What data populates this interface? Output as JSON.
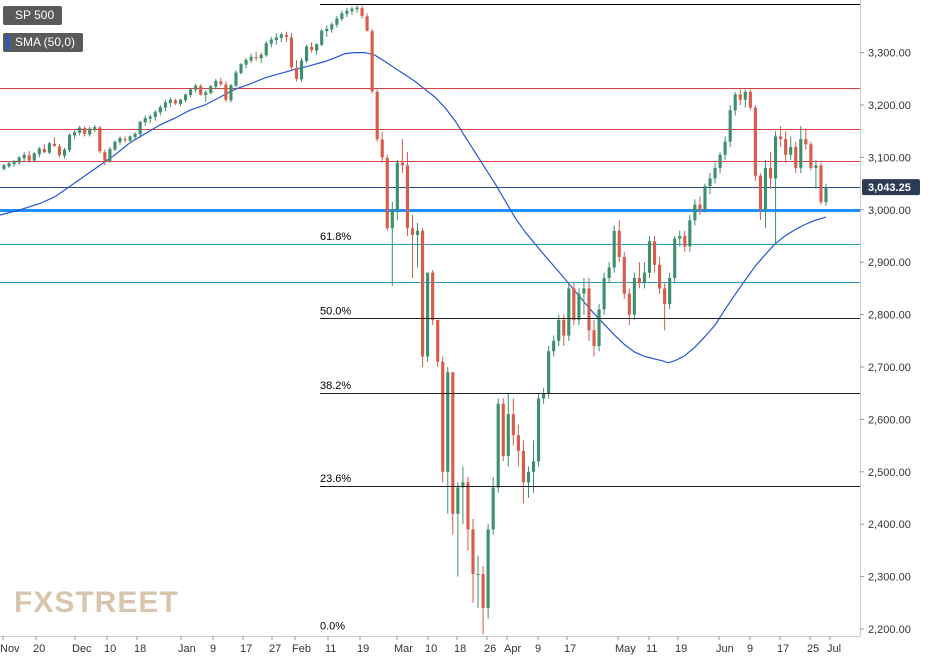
{
  "chart_data": {
    "type": "candlestick",
    "title": "SP 500",
    "series": [
      {
        "name": "SP 500",
        "kind": "candles"
      },
      {
        "name": "SMA (50,0)",
        "kind": "line",
        "color": "#2457d6"
      }
    ],
    "ylim": [
      2180,
      3400
    ],
    "y_ticks": [
      2200,
      2300,
      2400,
      2500,
      2600,
      2700,
      2800,
      2900,
      3000,
      3100,
      3200,
      3300
    ],
    "y_tick_labels": [
      "2,200.00",
      "2,300.00",
      "2,400.00",
      "2,500.00",
      "2,600.00",
      "2,700.00",
      "2,800.00",
      "2,900.00",
      "3,000.00",
      "3,100.00",
      "3,200.00",
      "3,300.00"
    ],
    "x_tick_labels": [
      "Nov",
      "20",
      "Dec",
      "10",
      "18",
      "Jan",
      "9",
      "17",
      "27",
      "Feb",
      "11",
      "19",
      "Mar",
      "10",
      "18",
      "26",
      "Apr",
      "9",
      "17",
      "May",
      "11",
      "19",
      "Jun",
      "9",
      "17",
      "25",
      "Jul"
    ],
    "current_price_label": "3,043.25",
    "current_price": 3043.25,
    "horizontal_levels": [
      {
        "value": 3232,
        "color": "#d64040",
        "width": 1
      },
      {
        "value": 3155,
        "color": "#d64040",
        "width": 1
      },
      {
        "value": 3093,
        "color": "#d64040",
        "width": 1
      },
      {
        "value": 3043,
        "color": "#274a8a",
        "width": 1
      },
      {
        "value": 3000,
        "color": "#1e90ff",
        "width": 3
      },
      {
        "value": 2935,
        "color": "#2c9fbd",
        "width": 1
      },
      {
        "value": 2862,
        "color": "#2c9fbd",
        "width": 1
      },
      {
        "value": 3393,
        "color": "#000000",
        "width": 1
      }
    ],
    "fibonacci_levels": [
      {
        "label": "61.8%",
        "value": 2935,
        "line": false
      },
      {
        "label": "50.0%",
        "value": 2793,
        "line": true
      },
      {
        "label": "38.2%",
        "value": 2650,
        "line": true
      },
      {
        "label": "23.6%",
        "value": 2473,
        "line": true
      },
      {
        "label": "0.0%",
        "value": 2191,
        "line": false
      }
    ],
    "candles": [
      [
        3078,
        3088,
        3075,
        3085
      ],
      [
        3083,
        3092,
        3080,
        3089
      ],
      [
        3087,
        3095,
        3082,
        3092
      ],
      [
        3090,
        3103,
        3086,
        3100
      ],
      [
        3098,
        3110,
        3092,
        3105
      ],
      [
        3104,
        3112,
        3090,
        3094
      ],
      [
        3094,
        3110,
        3091,
        3108
      ],
      [
        3106,
        3120,
        3100,
        3117
      ],
      [
        3116,
        3125,
        3108,
        3110
      ],
      [
        3109,
        3130,
        3106,
        3127
      ],
      [
        3126,
        3138,
        3120,
        3122
      ],
      [
        3121,
        3126,
        3100,
        3104
      ],
      [
        3103,
        3118,
        3098,
        3115
      ],
      [
        3114,
        3146,
        3110,
        3143
      ],
      [
        3142,
        3152,
        3135,
        3148
      ],
      [
        3147,
        3160,
        3142,
        3157
      ],
      [
        3156,
        3160,
        3140,
        3145
      ],
      [
        3144,
        3158,
        3140,
        3155
      ],
      [
        3154,
        3162,
        3148,
        3158
      ],
      [
        3157,
        3160,
        3108,
        3112
      ],
      [
        3110,
        3115,
        3085,
        3092
      ],
      [
        3093,
        3120,
        3090,
        3116
      ],
      [
        3115,
        3132,
        3112,
        3130
      ],
      [
        3129,
        3140,
        3124,
        3137
      ],
      [
        3135,
        3140,
        3128,
        3133
      ],
      [
        3132,
        3142,
        3128,
        3140
      ],
      [
        3139,
        3148,
        3134,
        3145
      ],
      [
        3144,
        3170,
        3140,
        3168
      ],
      [
        3167,
        3180,
        3160,
        3175
      ],
      [
        3174,
        3182,
        3166,
        3178
      ],
      [
        3177,
        3190,
        3170,
        3187
      ],
      [
        3186,
        3200,
        3180,
        3196
      ],
      [
        3195,
        3210,
        3188,
        3205
      ],
      [
        3204,
        3215,
        3196,
        3210
      ],
      [
        3209,
        3212,
        3200,
        3203
      ],
      [
        3202,
        3212,
        3198,
        3210
      ],
      [
        3209,
        3222,
        3205,
        3220
      ],
      [
        3219,
        3232,
        3214,
        3230
      ],
      [
        3229,
        3240,
        3224,
        3237
      ],
      [
        3236,
        3240,
        3218,
        3220
      ],
      [
        3219,
        3228,
        3205,
        3224
      ],
      [
        3223,
        3238,
        3220,
        3236
      ],
      [
        3235,
        3250,
        3230,
        3246
      ],
      [
        3245,
        3252,
        3236,
        3240
      ],
      [
        3239,
        3245,
        3206,
        3210
      ],
      [
        3209,
        3240,
        3205,
        3238
      ],
      [
        3237,
        3266,
        3234,
        3262
      ],
      [
        3261,
        3280,
        3258,
        3278
      ],
      [
        3277,
        3290,
        3270,
        3286
      ],
      [
        3285,
        3298,
        3280,
        3292
      ],
      [
        3291,
        3302,
        3284,
        3290
      ],
      [
        3289,
        3300,
        3280,
        3296
      ],
      [
        3295,
        3322,
        3292,
        3318
      ],
      [
        3317,
        3330,
        3310,
        3325
      ],
      [
        3324,
        3337,
        3315,
        3329
      ],
      [
        3328,
        3338,
        3320,
        3335
      ],
      [
        3334,
        3340,
        3320,
        3330
      ],
      [
        3329,
        3338,
        3268,
        3272
      ],
      [
        3271,
        3285,
        3245,
        3250
      ],
      [
        3249,
        3290,
        3244,
        3285
      ],
      [
        3284,
        3315,
        3280,
        3312
      ],
      [
        3311,
        3320,
        3300,
        3305
      ],
      [
        3304,
        3318,
        3296,
        3316
      ],
      [
        3315,
        3345,
        3312,
        3342
      ],
      [
        3341,
        3352,
        3330,
        3345
      ],
      [
        3344,
        3358,
        3338,
        3354
      ],
      [
        3353,
        3370,
        3348,
        3365
      ],
      [
        3364,
        3380,
        3360,
        3375
      ],
      [
        3374,
        3385,
        3368,
        3380
      ],
      [
        3379,
        3388,
        3372,
        3384
      ],
      [
        3383,
        3392,
        3376,
        3386
      ],
      [
        3385,
        3390,
        3365,
        3370
      ],
      [
        3369,
        3375,
        3340,
        3342
      ],
      [
        3341,
        3345,
        3222,
        3226
      ],
      [
        3225,
        3230,
        3130,
        3135
      ],
      [
        3134,
        3148,
        3090,
        3100
      ],
      [
        3099,
        3105,
        2960,
        2965
      ],
      [
        2965,
        3015,
        2855,
        3000
      ],
      [
        3000,
        3095,
        2980,
        3090
      ],
      [
        3090,
        3135,
        3070,
        3085
      ],
      [
        3085,
        3110,
        2950,
        2965
      ],
      [
        2965,
        2990,
        2870,
        2952
      ],
      [
        2952,
        2975,
        2890,
        2960
      ],
      [
        2960,
        2965,
        2700,
        2720
      ],
      [
        2720,
        2880,
        2710,
        2880
      ],
      [
        2880,
        2885,
        2780,
        2790
      ],
      [
        2790,
        2790,
        2700,
        2710
      ],
      [
        2710,
        2720,
        2480,
        2500
      ],
      [
        2500,
        2700,
        2420,
        2690
      ],
      [
        2690,
        2690,
        2380,
        2420
      ],
      [
        2420,
        2480,
        2300,
        2470
      ],
      [
        2470,
        2510,
        2400,
        2480
      ],
      [
        2480,
        2490,
        2350,
        2390
      ],
      [
        2390,
        2410,
        2250,
        2305
      ],
      [
        2305,
        2340,
        2240,
        2305
      ],
      [
        2305,
        2320,
        2190,
        2240
      ],
      [
        2240,
        2400,
        2220,
        2390
      ],
      [
        2390,
        2490,
        2380,
        2470
      ],
      [
        2470,
        2640,
        2460,
        2630
      ],
      [
        2630,
        2640,
        2520,
        2530
      ],
      [
        2530,
        2650,
        2510,
        2610
      ],
      [
        2610,
        2640,
        2550,
        2570
      ],
      [
        2570,
        2590,
        2510,
        2540
      ],
      [
        2540,
        2560,
        2440,
        2480
      ],
      [
        2480,
        2510,
        2450,
        2500
      ],
      [
        2500,
        2560,
        2460,
        2520
      ],
      [
        2520,
        2650,
        2510,
        2640
      ],
      [
        2640,
        2660,
        2630,
        2650
      ],
      [
        2650,
        2740,
        2640,
        2730
      ],
      [
        2730,
        2760,
        2720,
        2750
      ],
      [
        2750,
        2800,
        2740,
        2790
      ],
      [
        2790,
        2800,
        2740,
        2760
      ],
      [
        2760,
        2860,
        2750,
        2850
      ],
      [
        2850,
        2860,
        2780,
        2790
      ],
      [
        2790,
        2850,
        2780,
        2840
      ],
      [
        2840,
        2870,
        2800,
        2850
      ],
      [
        2850,
        2870,
        2750,
        2770
      ],
      [
        2770,
        2790,
        2720,
        2740
      ],
      [
        2740,
        2820,
        2730,
        2810
      ],
      [
        2810,
        2880,
        2800,
        2870
      ],
      [
        2870,
        2900,
        2860,
        2890
      ],
      [
        2890,
        2970,
        2880,
        2960
      ],
      [
        2960,
        2980,
        2900,
        2910
      ],
      [
        2910,
        2920,
        2830,
        2840
      ],
      [
        2840,
        2850,
        2780,
        2800
      ],
      [
        2800,
        2880,
        2790,
        2870
      ],
      [
        2870,
        2900,
        2850,
        2860
      ],
      [
        2860,
        2900,
        2850,
        2880
      ],
      [
        2880,
        2950,
        2870,
        2940
      ],
      [
        2940,
        2950,
        2880,
        2895
      ],
      [
        2895,
        2910,
        2840,
        2850
      ],
      [
        2850,
        2860,
        2770,
        2820
      ],
      [
        2820,
        2880,
        2810,
        2870
      ],
      [
        2870,
        2950,
        2860,
        2945
      ],
      [
        2945,
        2960,
        2930,
        2950
      ],
      [
        2950,
        2960,
        2920,
        2930
      ],
      [
        2930,
        2990,
        2920,
        2980
      ],
      [
        2980,
        3020,
        2970,
        3010
      ],
      [
        3010,
        3025,
        2990,
        3000
      ],
      [
        3000,
        3050,
        2995,
        3045
      ],
      [
        3045,
        3070,
        3030,
        3060
      ],
      [
        3060,
        3090,
        3050,
        3080
      ],
      [
        3080,
        3110,
        3070,
        3105
      ],
      [
        3105,
        3140,
        3095,
        3130
      ],
      [
        3130,
        3200,
        3120,
        3190
      ],
      [
        3190,
        3225,
        3180,
        3220
      ],
      [
        3220,
        3230,
        3200,
        3210
      ],
      [
        3210,
        3230,
        3195,
        3225
      ],
      [
        3225,
        3230,
        3190,
        3195
      ],
      [
        3195,
        3200,
        3055,
        3065
      ],
      [
        3065,
        3070,
        2980,
        3000
      ],
      [
        3000,
        3095,
        2965,
        3080
      ],
      [
        3080,
        3110,
        3040,
        3060
      ],
      [
        3060,
        3150,
        2935,
        3140
      ],
      [
        3140,
        3160,
        3120,
        3135
      ],
      [
        3135,
        3150,
        3090,
        3105
      ],
      [
        3105,
        3140,
        3095,
        3120
      ],
      [
        3120,
        3130,
        3070,
        3080
      ],
      [
        3080,
        3160,
        3070,
        3135
      ],
      [
        3135,
        3155,
        3115,
        3125
      ],
      [
        3125,
        3130,
        3075,
        3080
      ],
      [
        3080,
        3095,
        3040,
        3085
      ],
      [
        3085,
        3090,
        3010,
        3015
      ],
      [
        3015,
        3050,
        3008,
        3043
      ]
    ],
    "sma": [
      [
        0,
        2990
      ],
      [
        20,
        3000
      ],
      [
        40,
        3012
      ],
      [
        55,
        3025
      ],
      [
        70,
        3045
      ],
      [
        85,
        3065
      ],
      [
        100,
        3085
      ],
      [
        115,
        3105
      ],
      [
        130,
        3128
      ],
      [
        145,
        3145
      ],
      [
        160,
        3162
      ],
      [
        175,
        3175
      ],
      [
        190,
        3190
      ],
      [
        205,
        3200
      ],
      [
        220,
        3215
      ],
      [
        235,
        3230
      ],
      [
        250,
        3240
      ],
      [
        265,
        3252
      ],
      [
        280,
        3260
      ],
      [
        295,
        3268
      ],
      [
        310,
        3275
      ],
      [
        325,
        3283
      ],
      [
        335,
        3290
      ],
      [
        345,
        3298
      ],
      [
        355,
        3300
      ],
      [
        365,
        3300
      ],
      [
        375,
        3295
      ],
      [
        385,
        3283
      ],
      [
        395,
        3270
      ],
      [
        405,
        3258
      ],
      [
        415,
        3245
      ],
      [
        425,
        3230
      ],
      [
        435,
        3215
      ],
      [
        445,
        3195
      ],
      [
        455,
        3170
      ],
      [
        465,
        3140
      ],
      [
        475,
        3110
      ],
      [
        485,
        3080
      ],
      [
        495,
        3050
      ],
      [
        505,
        3018
      ],
      [
        515,
        2985
      ],
      [
        525,
        2958
      ],
      [
        535,
        2935
      ],
      [
        545,
        2912
      ],
      [
        555,
        2890
      ],
      [
        565,
        2868
      ],
      [
        575,
        2845
      ],
      [
        585,
        2822
      ],
      [
        595,
        2800
      ],
      [
        605,
        2780
      ],
      [
        615,
        2760
      ],
      [
        625,
        2742
      ],
      [
        635,
        2728
      ],
      [
        645,
        2720
      ],
      [
        655,
        2715
      ],
      [
        662,
        2712
      ],
      [
        668,
        2708
      ],
      [
        675,
        2712
      ],
      [
        685,
        2722
      ],
      [
        695,
        2738
      ],
      [
        705,
        2758
      ],
      [
        715,
        2780
      ],
      [
        725,
        2810
      ],
      [
        735,
        2838
      ],
      [
        745,
        2865
      ],
      [
        755,
        2892
      ],
      [
        765,
        2914
      ],
      [
        775,
        2935
      ],
      [
        785,
        2950
      ],
      [
        795,
        2962
      ],
      [
        805,
        2972
      ],
      [
        815,
        2980
      ],
      [
        826,
        2986
      ]
    ]
  }
}
